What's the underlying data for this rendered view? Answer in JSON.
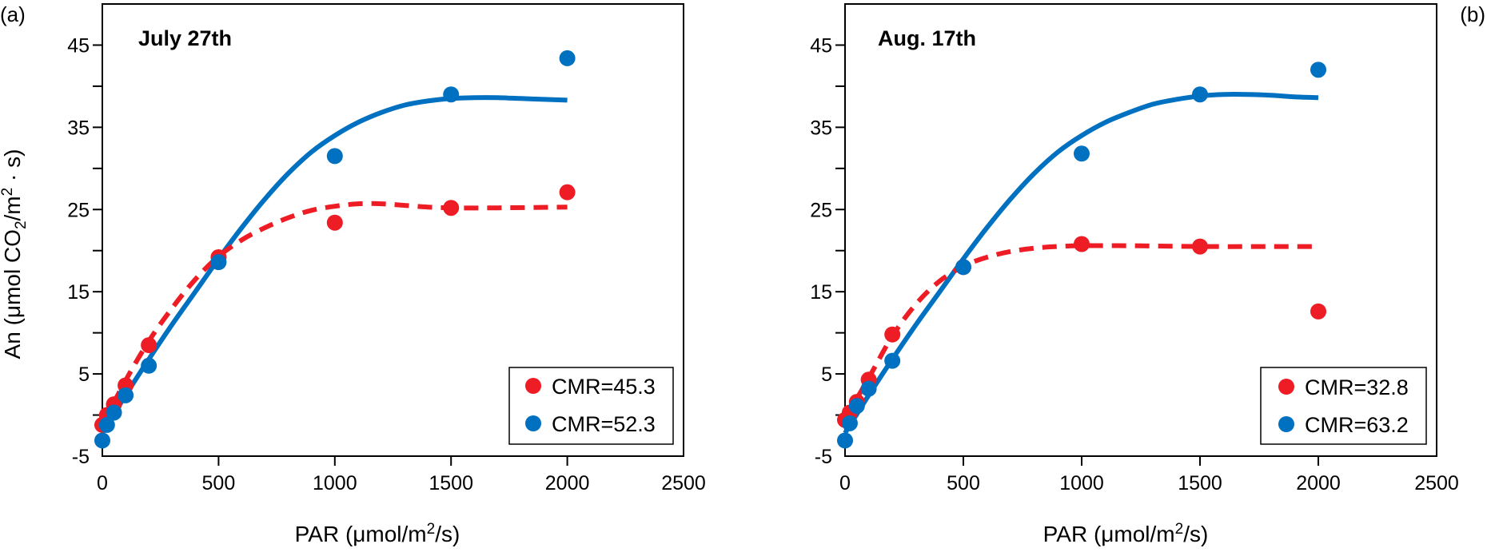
{
  "ylabel": "An (μmol CO2/m2 · s)",
  "xlabel": "PAR (μmol/m2/s)",
  "chart_data": [
    {
      "panel_label": "(a)",
      "type": "scatter",
      "title": "July 27th",
      "xlabel": "PAR (μmol/m2/s)",
      "ylabel": "An (μmol CO2/m2 · s)",
      "xlim": [
        0,
        2500
      ],
      "ylim": [
        -5,
        50
      ],
      "xticks": [
        0,
        500,
        1000,
        1500,
        2000,
        2500
      ],
      "yticks": [
        -5,
        5,
        15,
        25,
        35,
        45
      ],
      "legend_position": "bottom-right",
      "series": [
        {
          "name": "CMR=45.3",
          "color": "#ee1c25",
          "line_style": "dashed",
          "points": [
            [
              0,
              -1.2
            ],
            [
              20,
              0
            ],
            [
              50,
              1.3
            ],
            [
              100,
              3.6
            ],
            [
              200,
              8.5
            ],
            [
              500,
              19.2
            ],
            [
              1000,
              23.4
            ],
            [
              1500,
              25.2
            ],
            [
              2000,
              27.1
            ]
          ],
          "fit": [
            [
              0,
              -1.2
            ],
            [
              100,
              4.2
            ],
            [
              200,
              9
            ],
            [
              300,
              13
            ],
            [
              400,
              16.5
            ],
            [
              500,
              19.3
            ],
            [
              600,
              21.3
            ],
            [
              700,
              22.8
            ],
            [
              800,
              24
            ],
            [
              900,
              24.9
            ],
            [
              1000,
              25.4
            ],
            [
              1100,
              25.7
            ],
            [
              1200,
              25.7
            ],
            [
              1300,
              25.5
            ],
            [
              1400,
              25.3
            ],
            [
              1500,
              25.2
            ],
            [
              1700,
              25.2
            ],
            [
              2000,
              25.3
            ]
          ]
        },
        {
          "name": "CMR=52.3",
          "color": "#0070c0",
          "line_style": "solid",
          "points": [
            [
              0,
              -3.1
            ],
            [
              20,
              -1.2
            ],
            [
              50,
              0.3
            ],
            [
              100,
              2.4
            ],
            [
              200,
              6
            ],
            [
              500,
              18.6
            ],
            [
              1000,
              31.5
            ],
            [
              1500,
              39
            ],
            [
              2000,
              43.4
            ]
          ],
          "fit": [
            [
              0,
              -2.2
            ],
            [
              100,
              2.4
            ],
            [
              200,
              6.8
            ],
            [
              300,
              11
            ],
            [
              400,
              15
            ],
            [
              500,
              19
            ],
            [
              600,
              22.8
            ],
            [
              700,
              26.3
            ],
            [
              800,
              29.4
            ],
            [
              900,
              32
            ],
            [
              1000,
              34
            ],
            [
              1100,
              35.6
            ],
            [
              1200,
              36.8
            ],
            [
              1300,
              37.7
            ],
            [
              1400,
              38.2
            ],
            [
              1500,
              38.5
            ],
            [
              1600,
              38.6
            ],
            [
              1700,
              38.6
            ],
            [
              1800,
              38.5
            ],
            [
              1900,
              38.4
            ],
            [
              2000,
              38.3
            ]
          ]
        }
      ]
    },
    {
      "panel_label": "(b)",
      "type": "scatter",
      "title": "Aug. 17th",
      "xlabel": "PAR (μmol/m2/s)",
      "ylabel": "",
      "xlim": [
        0,
        2500
      ],
      "ylim": [
        -5,
        50
      ],
      "xticks": [
        0,
        500,
        1000,
        1500,
        2000,
        2500
      ],
      "yticks": [
        -5,
        5,
        15,
        25,
        35,
        45
      ],
      "legend_position": "bottom-right",
      "series": [
        {
          "name": "CMR=32.8",
          "color": "#ee1c25",
          "line_style": "dashed",
          "points": [
            [
              0,
              -0.6
            ],
            [
              20,
              0.3
            ],
            [
              50,
              1.6
            ],
            [
              100,
              4.3
            ],
            [
              200,
              9.8
            ],
            [
              500,
              18
            ],
            [
              1000,
              20.8
            ],
            [
              1500,
              20.5
            ],
            [
              2000,
              12.6
            ]
          ],
          "fit": [
            [
              0,
              -0.5
            ],
            [
              100,
              4.5
            ],
            [
              200,
              9.6
            ],
            [
              300,
              13.5
            ],
            [
              400,
              16.3
            ],
            [
              500,
              18.1
            ],
            [
              600,
              19.2
            ],
            [
              700,
              19.9
            ],
            [
              800,
              20.3
            ],
            [
              900,
              20.5
            ],
            [
              1000,
              20.6
            ],
            [
              1200,
              20.6
            ],
            [
              1500,
              20.5
            ],
            [
              1800,
              20.5
            ],
            [
              2000,
              20.5
            ]
          ]
        },
        {
          "name": "CMR=63.2",
          "color": "#0070c0",
          "line_style": "solid",
          "points": [
            [
              0,
              -3.1
            ],
            [
              20,
              -1
            ],
            [
              50,
              1.1
            ],
            [
              100,
              3.2
            ],
            [
              200,
              6.6
            ],
            [
              500,
              18
            ],
            [
              1000,
              31.8
            ],
            [
              1500,
              39
            ],
            [
              2000,
              42
            ]
          ],
          "fit": [
            [
              0,
              -2.2
            ],
            [
              100,
              2.4
            ],
            [
              200,
              6.8
            ],
            [
              300,
              11
            ],
            [
              400,
              15
            ],
            [
              500,
              19
            ],
            [
              600,
              22.8
            ],
            [
              700,
              26.3
            ],
            [
              800,
              29.4
            ],
            [
              900,
              32
            ],
            [
              1000,
              34
            ],
            [
              1100,
              35.6
            ],
            [
              1200,
              36.8
            ],
            [
              1300,
              37.8
            ],
            [
              1400,
              38.4
            ],
            [
              1500,
              38.8
            ],
            [
              1600,
              39
            ],
            [
              1700,
              39
            ],
            [
              1800,
              38.9
            ],
            [
              1900,
              38.7
            ],
            [
              2000,
              38.6
            ]
          ]
        }
      ]
    }
  ]
}
